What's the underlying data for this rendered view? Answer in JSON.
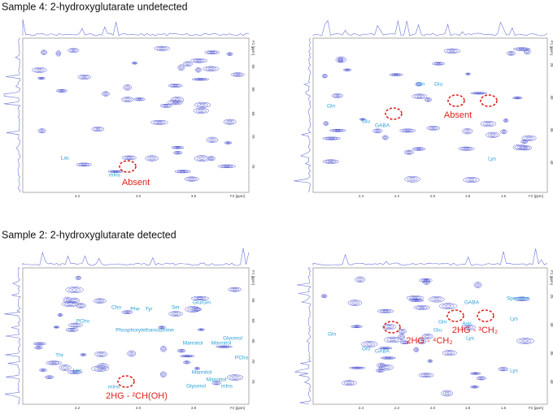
{
  "sections": [
    {
      "title": "Sample 4: 2-hydroxyglutarate undetected",
      "panels": [
        {
          "x_ticks": [
            "4.2",
            "4.0",
            "3.8"
          ],
          "x_axis_label": "F2 [ppm]",
          "y_axis_label": "F1 [ppm]",
          "y_ticks": [
            "55",
            "60",
            "65",
            "70",
            "75"
          ],
          "labels": [
            "Lac",
            "mIns"
          ],
          "annotations": [
            "Absent"
          ]
        },
        {
          "x_ticks": [
            "2.4",
            "2.2",
            "2.0",
            "1.8",
            "1.6"
          ],
          "x_axis_label": "F2 [ppm]",
          "y_axis_label": "F1 [ppm]",
          "y_ticks": [
            "25",
            "30",
            "35",
            "40"
          ],
          "labels": [
            "Gln",
            "Gln",
            "Glu",
            "Glu",
            "GABA",
            "Lys"
          ],
          "annotations": [
            "Absent"
          ]
        }
      ]
    },
    {
      "title": "Sample 2: 2-hydroxyglutarate detected",
      "panels": [
        {
          "x_ticks": [
            "4.2",
            "4.0",
            "3.8"
          ],
          "x_axis_label": "F2 [ppm]",
          "y_axis_label": "F1 [ppm]",
          "y_ticks": [
            "55",
            "60",
            "65",
            "70",
            "75"
          ],
          "labels": [
            "Cho",
            "Phe",
            "Tyr",
            "Ser",
            "Glu/Gln",
            "PCho",
            "Phosphorylethanolamine",
            "Mannitol",
            "Mannitol",
            "Glycerol",
            "PCho",
            "Thr",
            "Lac",
            "Mannitol",
            "Mannitol",
            "Glycerol",
            "mIns",
            "mIns"
          ],
          "annotations": [
            "2HG - ²CH(OH)"
          ]
        },
        {
          "x_ticks": [
            "2.4",
            "2.2",
            "2.0",
            "1.8",
            "1.6"
          ],
          "x_axis_label": "F2 [ppm]",
          "y_axis_label": "F1 [ppm]",
          "y_ticks": [
            "25",
            "30",
            "35",
            "40"
          ],
          "labels": [
            "Spermine",
            "GABA",
            "Lys",
            "Asp",
            "Gln",
            "Glu",
            "Gln",
            "Glu",
            "GABA",
            "Lys",
            "Lys"
          ],
          "annotations": [
            "2HG - ⁴CH₂",
            "2HG - ³CH₂"
          ]
        }
      ]
    }
  ]
}
